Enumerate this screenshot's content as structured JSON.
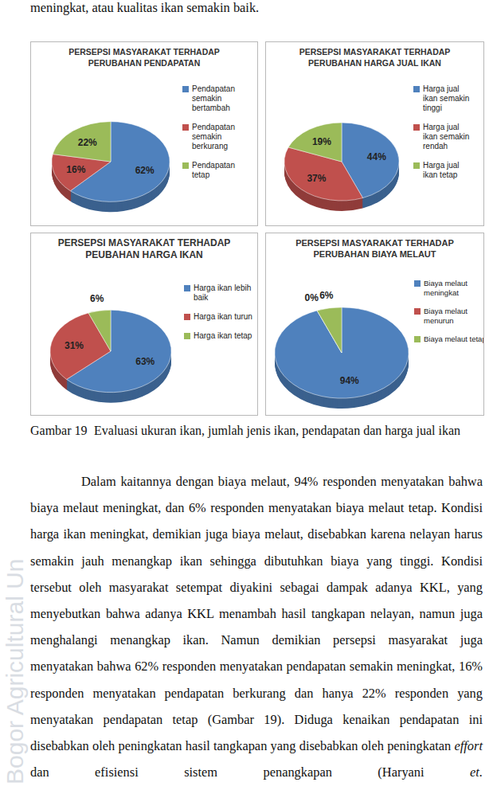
{
  "header_text": "meningkat, atau kualitas ikan semakin baik.",
  "chart_data": [
    {
      "type": "pie",
      "title": "PERSEPSI MASYARAKAT TERHADAP PERUBAHAN PENDAPATAN",
      "categories": [
        "Pendapatan semakin bertambah",
        "Pendapatan semakin berkurang",
        "Pendapatan tetap"
      ],
      "values": [
        62,
        16,
        22
      ],
      "value_labels": [
        "62%",
        "16%",
        "22%"
      ],
      "colors": [
        "#4f81bd",
        "#c0504d",
        "#9bbb59"
      ],
      "data_labels": true,
      "legend": "right"
    },
    {
      "type": "pie",
      "title": "PERSEPSI MASYARAKAT TERHADAP PERUBAHAN HARGA JUAL IKAN",
      "categories": [
        "Harga jual ikan semakin tinggi",
        "Harga jual ikan semakin rendah",
        "Harga jual ikan tetap"
      ],
      "values": [
        44,
        37,
        19
      ],
      "value_labels": [
        "44%",
        "37%",
        "19%"
      ],
      "colors": [
        "#4f81bd",
        "#c0504d",
        "#9bbb59"
      ],
      "data_labels": true,
      "legend": "right"
    },
    {
      "type": "pie",
      "title": "PERSEPSI MASYARAKAT TERHADAP PEUBAHAN HARGA IKAN",
      "categories": [
        "Harga ikan lebih baik",
        "Harga ikan turun",
        "Harga ikan tetap"
      ],
      "values": [
        63,
        31,
        6
      ],
      "value_labels": [
        "63%",
        "31%",
        "6%"
      ],
      "colors": [
        "#4f81bd",
        "#c0504d",
        "#9bbb59"
      ],
      "data_labels": true,
      "legend": "right"
    },
    {
      "type": "pie",
      "title": "PERSEPSI MASYARAKAT TERHADAP PERUBAHAN BIAYA MELAUT",
      "categories": [
        "Biaya melaut meningkat",
        "Biaya melaut menurun",
        "Biaya melaut tetap"
      ],
      "values": [
        94,
        0,
        6
      ],
      "value_labels": [
        "94%",
        "0%",
        "6%"
      ],
      "colors": [
        "#4f81bd",
        "#c0504d",
        "#9bbb59"
      ],
      "data_labels": true,
      "legend": "right"
    }
  ],
  "caption_label": "Gambar 19",
  "caption_text": "Evaluasi ukuran ikan, jumlah jenis ikan, pendapatan dan harga jual ikan",
  "paragraph": [
    {
      "text": "Dalam kaitannya dengan biaya melaut, 94% responden menyatakan bahwa biaya melaut meningkat, dan 6% responden menyatakan biaya melaut tetap. Kondisi harga ikan meningkat, demikian juga biaya melaut, disebabkan karena nelayan harus semakin jauh menangkap ikan sehingga dibutuhkan biaya yang tinggi.  Kondisi tersebut oleh masyarakat setempat diyakini sebagai dampak adanya KKL, yang menyebutkan bahwa adanya KKL menambah hasil tangkapan nelayan, namun juga menghalangi menangkap ikan. Namun demikian persepsi masyarakat juga menyatakan bahwa 62% responden menyatakan pendapatan semakin meningkat, 16% responden menyatakan pendapatan berkurang dan hanya 22% responden yang menyatakan pendapatan tetap (Gambar 19).  Diduga kenaikan pendapatan ini disebabkan oleh peningkatan hasil tangkapan yang disebabkan oleh peningkatan ",
      "italic": false
    },
    {
      "text": "effort",
      "italic": true
    },
    {
      "text": " dan efisiensi sistem penangkapan (Haryani ",
      "italic": false
    },
    {
      "text": "et.",
      "italic": true
    }
  ],
  "watermark": "Bogor Agricultural Un"
}
